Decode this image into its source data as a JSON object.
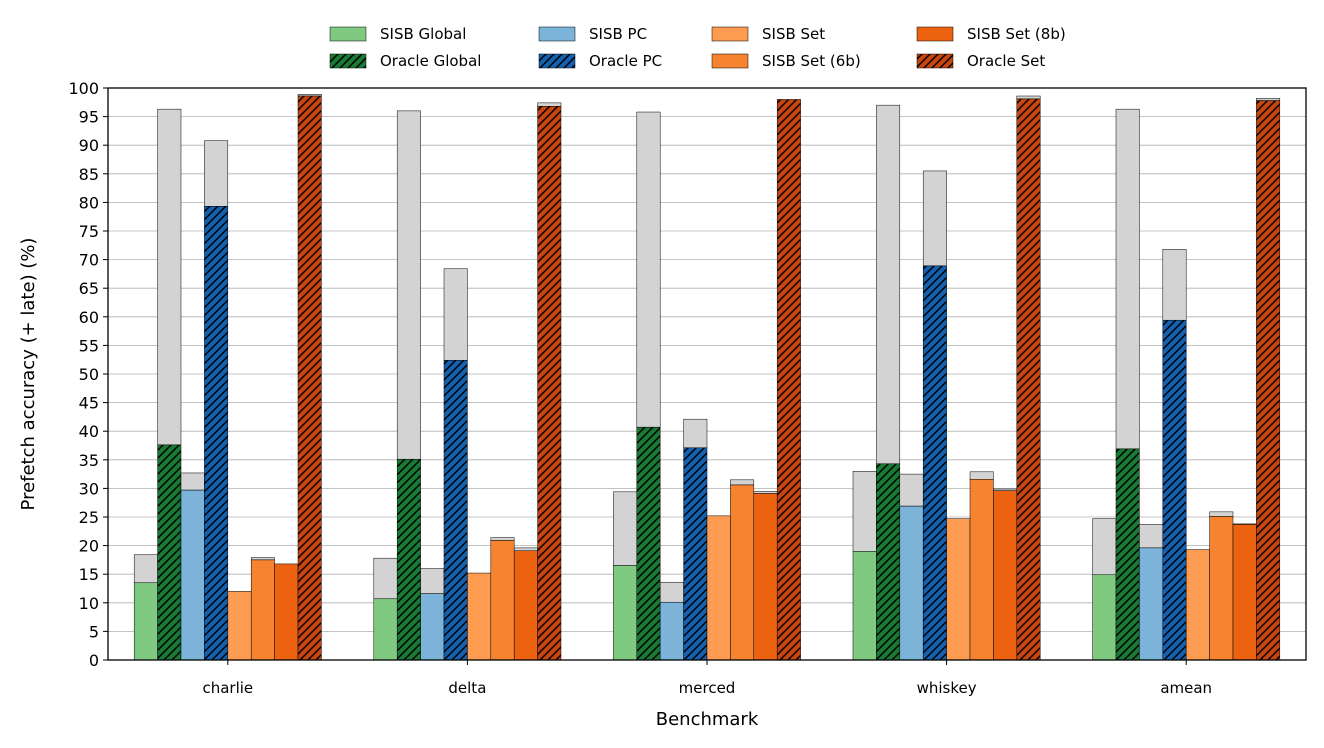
{
  "chart_data": {
    "type": "bar",
    "title": "",
    "xlabel": "Benchmark",
    "ylabel": "Prefetch accuracy (+ late) (%)",
    "ylim": [
      0,
      100
    ],
    "yticks": [
      0,
      5,
      10,
      15,
      20,
      25,
      30,
      35,
      40,
      45,
      50,
      55,
      60,
      65,
      70,
      75,
      80,
      85,
      90,
      95,
      100
    ],
    "grid": "horizontal",
    "legend_position": "top",
    "categories": [
      "charlie",
      "delta",
      "merced",
      "whiskey",
      "amean"
    ],
    "late_color": "#d3d3d3",
    "series": [
      {
        "name": "SISB Global",
        "color": "#80c980",
        "hatch": false,
        "values": [
          13.5,
          10.7,
          16.5,
          19.0,
          14.9
        ],
        "with_late": [
          18.4,
          17.8,
          29.4,
          33.0,
          24.7
        ]
      },
      {
        "name": "Oracle Global",
        "color": "#1a7a35",
        "hatch": true,
        "values": [
          37.6,
          35.1,
          40.7,
          34.3,
          36.9
        ],
        "with_late": [
          96.3,
          96.0,
          95.8,
          97.0,
          96.3
        ]
      },
      {
        "name": "SISB PC",
        "color": "#7bb4d8",
        "hatch": false,
        "values": [
          29.7,
          11.6,
          10.1,
          26.9,
          19.6
        ],
        "with_late": [
          32.7,
          16.0,
          13.6,
          32.5,
          23.7
        ]
      },
      {
        "name": "Oracle PC",
        "color": "#1560b0",
        "hatch": true,
        "values": [
          79.3,
          52.4,
          37.1,
          68.9,
          59.4
        ],
        "with_late": [
          90.8,
          68.4,
          42.1,
          85.5,
          71.8
        ]
      },
      {
        "name": "SISB Set",
        "color": "#fd9b50",
        "hatch": false,
        "values": [
          12.0,
          15.2,
          25.2,
          24.7,
          19.3
        ],
        "with_late": [
          12.0,
          15.2,
          25.2,
          24.7,
          19.3
        ]
      },
      {
        "name": "SISB Set (6b)",
        "color": "#f5832f",
        "hatch": false,
        "values": [
          17.5,
          20.9,
          30.6,
          31.6,
          25.1
        ],
        "with_late": [
          17.9,
          21.4,
          31.5,
          32.9,
          25.9
        ]
      },
      {
        "name": "SISB Set (8b)",
        "color": "#ed6210",
        "hatch": false,
        "values": [
          16.8,
          19.1,
          29.1,
          29.6,
          23.7
        ],
        "with_late": [
          16.8,
          19.6,
          29.5,
          29.9,
          23.8
        ]
      },
      {
        "name": "Oracle Set",
        "color": "#c84510",
        "hatch": true,
        "values": [
          98.6,
          96.8,
          98.0,
          98.1,
          97.8
        ],
        "with_late": [
          98.9,
          97.4,
          98.0,
          98.6,
          98.2
        ]
      }
    ]
  }
}
